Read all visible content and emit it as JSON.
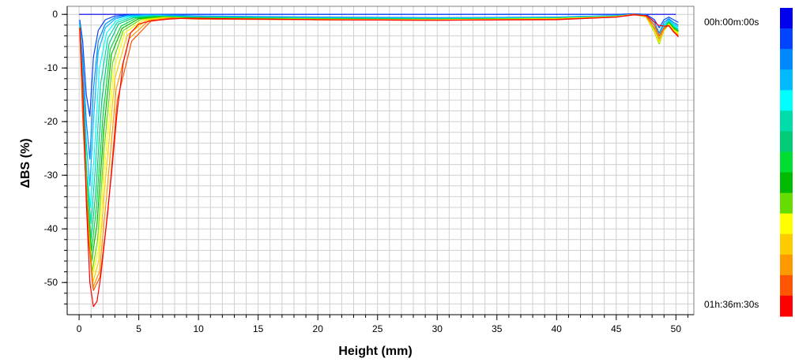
{
  "chart_data": {
    "type": "line",
    "xlabel": "Height (mm)",
    "ylabel": "ΔBS (%)",
    "xlim": [
      -1,
      51.5
    ],
    "ylim": [
      -56,
      1.5
    ],
    "x_ticks": [
      0,
      5,
      10,
      15,
      20,
      25,
      30,
      35,
      40,
      45,
      50
    ],
    "y_ticks": [
      0,
      -10,
      -20,
      -30,
      -40,
      -50
    ],
    "grid": true,
    "legend": {
      "type": "colorbar",
      "placement": "right",
      "start_label": "00h:00m:00s",
      "end_label": "01h:36m:30s",
      "colors": [
        "#0000ee",
        "#0044ff",
        "#0088ff",
        "#00bbff",
        "#00ffff",
        "#00ddaa",
        "#00cc77",
        "#00dd33",
        "#00bb00",
        "#66dd00",
        "#ffff00",
        "#ffcc00",
        "#ff9900",
        "#ff5500",
        "#ff0000"
      ]
    },
    "series": [
      {
        "color": "#0000ee",
        "x": [
          0,
          50
        ],
        "y": [
          0,
          0
        ]
      },
      {
        "color": "#0044ff",
        "x": [
          0.05,
          0.3,
          0.6,
          0.9,
          1.2,
          1.6,
          2.2,
          3,
          4,
          6,
          10,
          20,
          30,
          40,
          45,
          46.5,
          47.5,
          48.2,
          48.6,
          49,
          49.4,
          49.8,
          50.2
        ],
        "y": [
          -1,
          -5,
          -15,
          -19,
          -8,
          -3,
          -1,
          -0.3,
          -0.1,
          0,
          0,
          0,
          0,
          0,
          0,
          0.1,
          0,
          -1,
          -2.5,
          -1,
          -0.5,
          -1,
          -1.5
        ]
      },
      {
        "color": "#0088ff",
        "x": [
          0.05,
          0.3,
          0.6,
          0.9,
          1.2,
          1.6,
          2.2,
          3,
          4,
          6,
          10,
          20,
          30,
          40,
          45,
          46.5,
          47.5,
          48.2,
          48.6,
          49,
          49.4,
          49.8,
          50.2
        ],
        "y": [
          -1.5,
          -8,
          -20,
          -27,
          -14,
          -5,
          -1.8,
          -0.6,
          -0.2,
          0,
          -0.3,
          -0.5,
          -0.6,
          -0.5,
          -0.2,
          0,
          -0.1,
          -1.5,
          -3.5,
          -1.5,
          -0.8,
          -1.5,
          -2
        ]
      },
      {
        "color": "#00bbff",
        "x": [
          0.05,
          0.3,
          0.6,
          0.9,
          1.2,
          1.6,
          2.2,
          3,
          4,
          6,
          10,
          20,
          30,
          40,
          45,
          46.5,
          47.5,
          48.2,
          48.6,
          49,
          49.4,
          49.8,
          50.2
        ],
        "y": [
          -2,
          -10,
          -24,
          -32,
          -20,
          -7,
          -2.5,
          -0.9,
          -0.3,
          -0.2,
          -0.4,
          -0.6,
          -0.7,
          -0.6,
          -0.3,
          0,
          -0.2,
          -2,
          -4,
          -2,
          -1,
          -1.8,
          -2.3
        ]
      },
      {
        "color": "#00ffff",
        "x": [
          0.05,
          0.3,
          0.6,
          0.95,
          1.3,
          1.7,
          2.3,
          3.1,
          4.2,
          6,
          10,
          20,
          30,
          40,
          45,
          46.5,
          47.5,
          48.2,
          48.6,
          49,
          49.4,
          49.8,
          50.2
        ],
        "y": [
          -2,
          -12,
          -28,
          -36,
          -25,
          -10,
          -3.5,
          -1.2,
          -0.4,
          -0.3,
          -0.5,
          -0.7,
          -0.8,
          -0.6,
          -0.3,
          0,
          -0.3,
          -2.5,
          -4.5,
          -2.2,
          -1.2,
          -2,
          -2.6
        ]
      },
      {
        "color": "#00ddaa",
        "x": [
          0.05,
          0.3,
          0.65,
          1,
          1.35,
          1.8,
          2.4,
          3.2,
          4.4,
          6.2,
          10,
          20,
          30,
          40,
          45,
          46.5,
          47.5,
          48.2,
          48.6,
          49,
          49.4,
          49.8,
          50.2
        ],
        "y": [
          -2,
          -13,
          -30,
          -39,
          -29,
          -13,
          -4.5,
          -1.5,
          -0.5,
          -0.3,
          -0.5,
          -0.7,
          -0.8,
          -0.7,
          -0.3,
          0,
          -0.4,
          -2.8,
          -5,
          -2.5,
          -1.3,
          -2.2,
          -2.8
        ]
      },
      {
        "color": "#00cc77",
        "x": [
          0.05,
          0.3,
          0.65,
          1,
          1.4,
          1.9,
          2.5,
          3.3,
          4.6,
          6.4,
          10,
          20,
          30,
          40,
          45,
          46.5,
          47.5,
          48.2,
          48.6,
          49,
          49.4,
          49.8,
          50.2
        ],
        "y": [
          -2.5,
          -14,
          -32,
          -42,
          -33,
          -16,
          -5.5,
          -1.8,
          -0.6,
          -0.4,
          -0.6,
          -0.8,
          -0.9,
          -0.7,
          -0.4,
          0,
          -0.4,
          -3,
          -5.2,
          -2.7,
          -1.4,
          -2.4,
          -3
        ]
      },
      {
        "color": "#00dd33",
        "x": [
          0.05,
          0.3,
          0.7,
          1.05,
          1.45,
          2,
          2.6,
          3.5,
          4.8,
          6.6,
          10,
          20,
          30,
          40,
          45,
          46.5,
          47.5,
          48.2,
          48.6,
          49,
          49.4,
          49.8,
          50.2
        ],
        "y": [
          -2.5,
          -15,
          -34,
          -44,
          -36,
          -19,
          -6.5,
          -2.2,
          -0.7,
          -0.4,
          -0.6,
          -0.8,
          -0.9,
          -0.7,
          -0.4,
          0,
          -0.5,
          -3.2,
          -5.4,
          -2.8,
          -1.5,
          -2.5,
          -3.1
        ]
      },
      {
        "color": "#00bb00",
        "x": [
          0.05,
          0.3,
          0.7,
          1.05,
          1.5,
          2.05,
          2.7,
          3.6,
          5,
          6.8,
          10,
          20,
          30,
          40,
          45,
          46.5,
          47.5,
          48.2,
          48.6,
          49,
          49.4,
          49.8,
          50.2
        ],
        "y": [
          -2.5,
          -16,
          -36,
          -46,
          -39,
          -22,
          -7.5,
          -2.6,
          -0.8,
          -0.5,
          -0.7,
          -0.9,
          -1,
          -0.8,
          -0.4,
          0,
          -0.5,
          -3.3,
          -5.5,
          -2.9,
          -1.6,
          -2.6,
          -3.2
        ]
      },
      {
        "color": "#66dd00",
        "x": [
          0.05,
          0.3,
          0.75,
          1.1,
          1.55,
          2.1,
          2.8,
          3.7,
          5.2,
          7,
          10,
          20,
          30,
          40,
          45,
          46.5,
          47.5,
          48.2,
          48.6,
          49,
          49.4,
          49.8,
          50.2
        ],
        "y": [
          -2.5,
          -17,
          -38,
          -48,
          -42,
          -25,
          -9,
          -3,
          -0.9,
          -0.5,
          -0.7,
          -0.9,
          -1,
          -0.8,
          -0.4,
          0,
          -0.5,
          -3.3,
          -5.5,
          -3,
          -1.7,
          -2.7,
          -3.3
        ]
      },
      {
        "color": "#ffff00",
        "x": [
          0.05,
          0.3,
          0.75,
          1.1,
          1.6,
          2.15,
          2.9,
          3.8,
          5.4,
          7.2,
          10,
          20,
          30,
          40,
          45,
          46.5,
          47.5,
          48.2,
          48.6,
          49,
          49.4,
          49.8,
          50.2
        ],
        "y": [
          -2.5,
          -17,
          -39,
          -49,
          -44,
          -28,
          -10.5,
          -3.5,
          -1,
          -0.6,
          -0.8,
          -0.9,
          -1,
          -0.8,
          -0.4,
          0,
          -0.5,
          -3.2,
          -5.3,
          -3,
          -1.8,
          -2.9,
          -3.5
        ]
      },
      {
        "color": "#ffcc00",
        "x": [
          0.05,
          0.3,
          0.8,
          1.15,
          1.65,
          2.2,
          3,
          4,
          5.6,
          7.4,
          10,
          20,
          30,
          40,
          45,
          46.5,
          47.5,
          48.2,
          48.6,
          49,
          49.4,
          49.8,
          50.2
        ],
        "y": [
          -2.5,
          -18,
          -40,
          -50,
          -46,
          -31,
          -12,
          -4,
          -1.1,
          -0.6,
          -0.8,
          -1,
          -1,
          -0.9,
          -0.5,
          0,
          -0.5,
          -3,
          -5,
          -3,
          -1.9,
          -3,
          -3.7
        ]
      },
      {
        "color": "#ff9900",
        "x": [
          0.05,
          0.3,
          0.8,
          1.15,
          1.7,
          2.3,
          3.1,
          4.2,
          5.8,
          7.6,
          10,
          20,
          30,
          40,
          45,
          46.5,
          47.5,
          48.2,
          48.6,
          49,
          49.4,
          49.8,
          50.2
        ],
        "y": [
          -2.5,
          -18,
          -41,
          -51,
          -48,
          -34,
          -14,
          -4.5,
          -1.2,
          -0.7,
          -0.8,
          -1,
          -1.1,
          -0.9,
          -0.5,
          0,
          -0.4,
          -2.5,
          -4.5,
          -2.8,
          -2,
          -3.2,
          -3.9
        ]
      },
      {
        "color": "#ff5500",
        "x": [
          0.05,
          0.3,
          0.8,
          1.2,
          1.75,
          2.4,
          3.2,
          4.4,
          6,
          7.8,
          10,
          20,
          30,
          40,
          45,
          46.5,
          47.5,
          48.2,
          48.6,
          49,
          49.4,
          49.8,
          50.2
        ],
        "y": [
          -2.5,
          -19,
          -42,
          -51.5,
          -49,
          -37,
          -16,
          -5,
          -1.3,
          -0.7,
          -0.9,
          -1,
          -1.1,
          -0.9,
          -0.5,
          0,
          -0.3,
          -2,
          -4,
          -2.5,
          -2.1,
          -3.3,
          -4
        ]
      },
      {
        "color": "#ff0000",
        "x": [
          0.05,
          0.3,
          0.6,
          0.9,
          1.2,
          1.5,
          1.8,
          2.2,
          2.7,
          3.2,
          3.7,
          4.3,
          5,
          6,
          7.5,
          9,
          12,
          20,
          30,
          40,
          45,
          46.5,
          47.5,
          48,
          48.5,
          49,
          49.4,
          49.8,
          50.2
        ],
        "y": [
          -2.5,
          -13,
          -35,
          -50,
          -54.5,
          -53.5,
          -49,
          -41,
          -30,
          -18,
          -9,
          -3.5,
          -1.8,
          -1.2,
          -0.9,
          -0.7,
          -0.8,
          -1,
          -1.1,
          -1,
          -0.5,
          -0.1,
          -0.2,
          -1,
          -2,
          -2.2,
          -2.1,
          -3.2,
          -4.2
        ]
      }
    ]
  }
}
